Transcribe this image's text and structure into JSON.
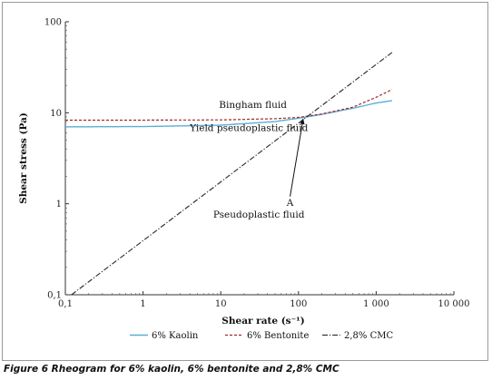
{
  "caption": "Figure 6 Rheogram for 6% kaolin, 6% bentonite and 2,8% CMC",
  "chart_data": {
    "type": "line",
    "xscale": "log",
    "yscale": "log",
    "xlim": [
      0.1,
      10000
    ],
    "ylim": [
      0.1,
      100
    ],
    "xlabel": "Shear rate (s⁻¹)",
    "ylabel": "Shear stress (Pa)",
    "x_ticks": [
      {
        "value": 0.1,
        "label": "0,1"
      },
      {
        "value": 1,
        "label": "1"
      },
      {
        "value": 10,
        "label": "10"
      },
      {
        "value": 100,
        "label": "100"
      },
      {
        "value": 1000,
        "label": "1 000"
      },
      {
        "value": 10000,
        "label": "10 000"
      }
    ],
    "y_ticks": [
      {
        "value": 0.1,
        "label": "0,1"
      },
      {
        "value": 1,
        "label": "1"
      },
      {
        "value": 10,
        "label": "10"
      },
      {
        "value": 100,
        "label": "100"
      }
    ],
    "series": [
      {
        "name": "6% Kaolin",
        "color": "#5aaed6",
        "dash": "solid",
        "x": [
          0.1,
          1,
          10,
          50,
          100,
          200,
          500,
          1000,
          1600
        ],
        "y": [
          7.0,
          7.05,
          7.3,
          8.0,
          8.7,
          9.6,
          11.2,
          12.8,
          13.6
        ]
      },
      {
        "name": "6% Bentonite",
        "color": "#a0282a",
        "dash": "dashed",
        "x": [
          0.1,
          1,
          10,
          50,
          100,
          200,
          500,
          1000,
          1600
        ],
        "y": [
          8.3,
          8.3,
          8.35,
          8.6,
          8.9,
          9.7,
          11.5,
          14.8,
          18.0
        ]
      },
      {
        "name": "2,8% CMC",
        "color": "#333333",
        "dash": "dashdot",
        "x": [
          0.12,
          1600
        ],
        "y": [
          0.1,
          46
        ]
      }
    ],
    "annotations": [
      {
        "text": "Bingham fluid",
        "x": 9.5,
        "y": 11.3
      },
      {
        "text": "Yield pseudoplastic fluid",
        "x": 4,
        "y": 6.3
      },
      {
        "text": "Pseudoplastic fluid",
        "x": 8,
        "y": 0.7
      },
      {
        "text": "A",
        "x": 78,
        "y": 0.95
      }
    ],
    "arrow": {
      "from": [
        78,
        1.2
      ],
      "to": [
        115,
        8.6
      ]
    },
    "legend_position": "bottom"
  }
}
